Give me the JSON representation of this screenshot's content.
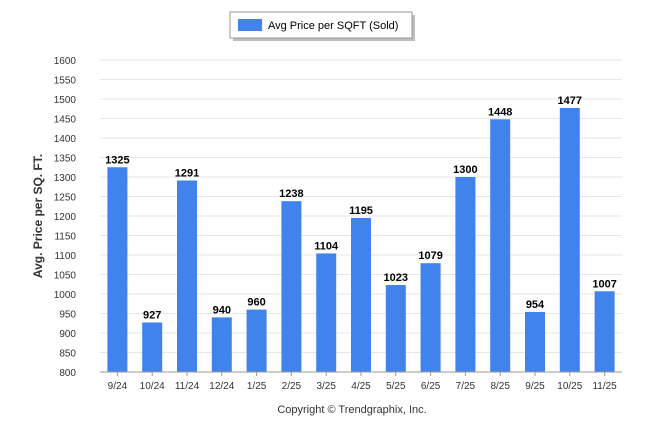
{
  "chart_data": {
    "type": "bar",
    "title": "",
    "xlabel": "",
    "ylabel": "Avg. Price per SQ. FT.",
    "ylim": [
      800,
      1600
    ],
    "ytick_step": 50,
    "grid": true,
    "legend": {
      "position": "top-center",
      "entries": [
        "Avg Price per SQFT (Sold)"
      ]
    },
    "categories": [
      "9/24",
      "10/24",
      "11/24",
      "12/24",
      "1/25",
      "2/25",
      "3/25",
      "4/25",
      "5/25",
      "6/25",
      "7/25",
      "8/25",
      "9/25",
      "10/25",
      "11/25"
    ],
    "series": [
      {
        "name": "Avg Price per SQFT (Sold)",
        "values": [
          1325,
          927,
          1291,
          940,
          960,
          1238,
          1104,
          1195,
          1023,
          1079,
          1300,
          1448,
          954,
          1477,
          1007
        ]
      }
    ],
    "footer": "Copyright © Trendgraphix, Inc."
  },
  "colors": {
    "bar": "#4183ec",
    "grid": "#e6e6e6",
    "axis": "#999999"
  }
}
